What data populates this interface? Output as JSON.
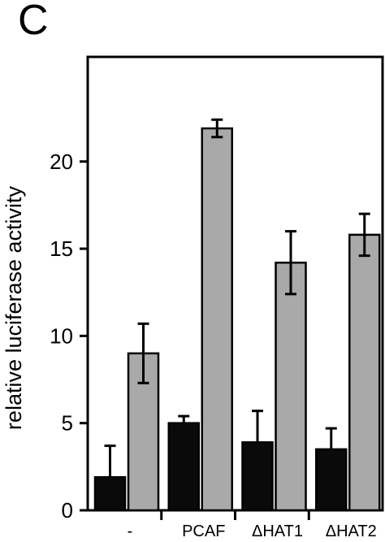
{
  "panel_label": "C",
  "colors": {
    "series_black": "#0a0a0a",
    "series_gray": "#a9a9a9",
    "axis": "#000000"
  },
  "chart_data": {
    "type": "bar",
    "title": "",
    "xlabel": "",
    "ylabel": "relative luciferase activity",
    "categories": [
      "-",
      "PCAF",
      "ΔHAT1",
      "ΔHAT2"
    ],
    "ylim": [
      0,
      26
    ],
    "yticks": [
      0,
      5,
      10,
      15,
      20
    ],
    "grid": false,
    "legend": "none",
    "series": [
      {
        "color": "#0a0a0a",
        "values": [
          1.9,
          5.0,
          3.9,
          3.5
        ],
        "errors": [
          1.8,
          0.4,
          1.8,
          1.2
        ]
      },
      {
        "color": "#a9a9a9",
        "values": [
          9.0,
          21.9,
          14.2,
          15.8
        ],
        "errors": [
          1.7,
          0.5,
          1.8,
          1.2
        ]
      }
    ]
  }
}
